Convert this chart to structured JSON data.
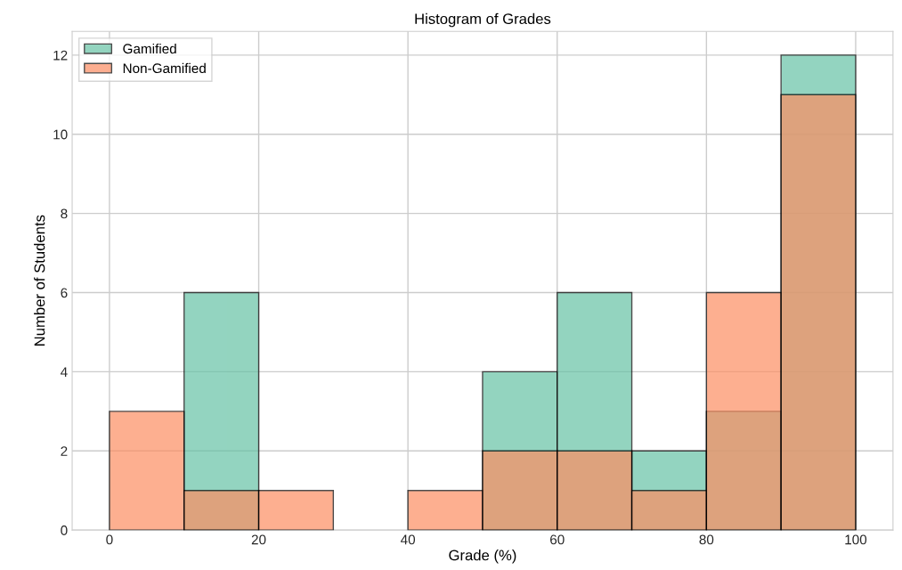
{
  "chart_data": {
    "type": "histogram",
    "title": "Histogram of Grades",
    "xlabel": "Grade (%)",
    "ylabel": "Number of Students",
    "bins": [
      0,
      10,
      20,
      30,
      40,
      50,
      60,
      70,
      80,
      90,
      100
    ],
    "series": [
      {
        "name": "Gamified",
        "color": "#66c2a5",
        "values": [
          0,
          6,
          0,
          0,
          0,
          4,
          6,
          2,
          3,
          12
        ]
      },
      {
        "name": "Non-Gamified",
        "color": "#fc8d62",
        "values": [
          3,
          1,
          1,
          0,
          1,
          2,
          2,
          1,
          6,
          11
        ]
      }
    ],
    "xlim": [
      -5,
      105
    ],
    "xticks": [
      0,
      20,
      40,
      60,
      80,
      100
    ],
    "ylim": [
      0,
      12.6
    ],
    "yticks": [
      0,
      2,
      4,
      6,
      8,
      10,
      12
    ],
    "grid": true,
    "legend": "top left"
  }
}
